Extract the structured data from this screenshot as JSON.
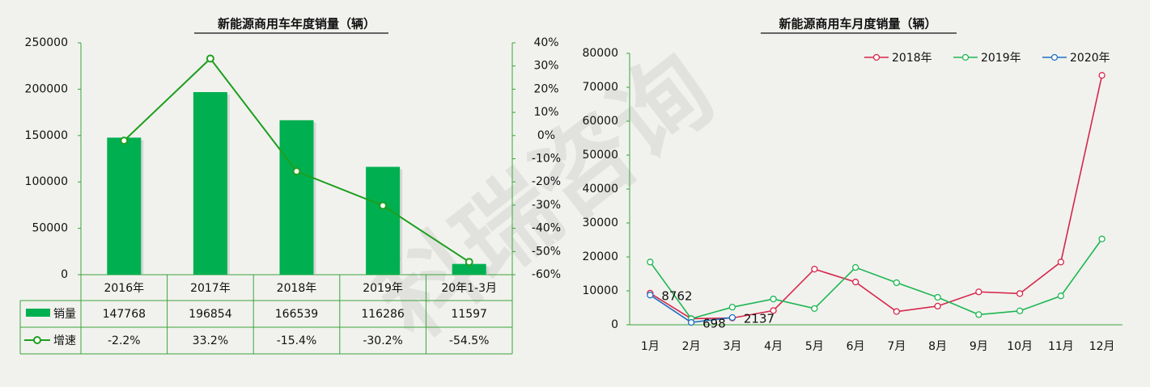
{
  "watermark": "科瑞咨询",
  "chart_data": [
    {
      "type": "bar",
      "title": "新能源商用车年度销量（辆）",
      "categories": [
        "2016年",
        "2017年",
        "2018年",
        "2019年",
        "20年1-3月"
      ],
      "series": [
        {
          "name": "销量",
          "color": "#00b050",
          "values": [
            147768,
            196854,
            166539,
            116286,
            11597
          ]
        },
        {
          "name": "增速",
          "color": "#1e9e1e",
          "axis": "y2",
          "type": "line",
          "values": [
            -2.2,
            33.2,
            -15.4,
            -30.2,
            -54.5
          ],
          "value_labels": [
            "-2.2%",
            "33.2%",
            "-15.4%",
            "-30.2%",
            "-54.5%"
          ]
        }
      ],
      "ylim": [
        0,
        250000
      ],
      "yticks": [
        0,
        50000,
        100000,
        150000,
        200000,
        250000
      ],
      "y2lim": [
        -60,
        40
      ],
      "y2ticks": [
        {
          "value": -60,
          "label": "-60%"
        },
        {
          "value": -50,
          "label": "-50%"
        },
        {
          "value": -40,
          "label": "-40%"
        },
        {
          "value": -30,
          "label": "-30%"
        },
        {
          "value": -20,
          "label": "-20%"
        },
        {
          "value": -10,
          "label": "-10%"
        },
        {
          "value": 0,
          "label": "0%"
        },
        {
          "value": 10,
          "label": "10%"
        },
        {
          "value": 20,
          "label": "20%"
        },
        {
          "value": 30,
          "label": "30%"
        },
        {
          "value": 40,
          "label": "40%"
        }
      ],
      "data_table": true
    },
    {
      "type": "line",
      "title": "新能源商用车月度销量（辆）",
      "categories": [
        "1月",
        "2月",
        "3月",
        "4月",
        "5月",
        "6月",
        "7月",
        "8月",
        "9月",
        "10月",
        "11月",
        "12月"
      ],
      "series": [
        {
          "name": "2018年",
          "color": "#d6264a",
          "values": [
            9300,
            1800,
            2000,
            4200,
            16400,
            12600,
            3900,
            5500,
            9700,
            9200,
            18500,
            73500
          ]
        },
        {
          "name": "2019年",
          "color": "#1fb653",
          "values": [
            18500,
            1800,
            5200,
            7600,
            4800,
            16900,
            12400,
            8100,
            3000,
            4100,
            8500,
            25300
          ]
        },
        {
          "name": "2020年",
          "color": "#1f6fbf",
          "values": [
            8762,
            698,
            2137,
            null,
            null,
            null,
            null,
            null,
            null,
            null,
            null,
            null
          ],
          "show_labels": true
        }
      ],
      "ylim": [
        0,
        80000
      ],
      "yticks": [
        0,
        10000,
        20000,
        30000,
        40000,
        50000,
        60000,
        70000,
        80000
      ],
      "legend": "top-right"
    }
  ]
}
